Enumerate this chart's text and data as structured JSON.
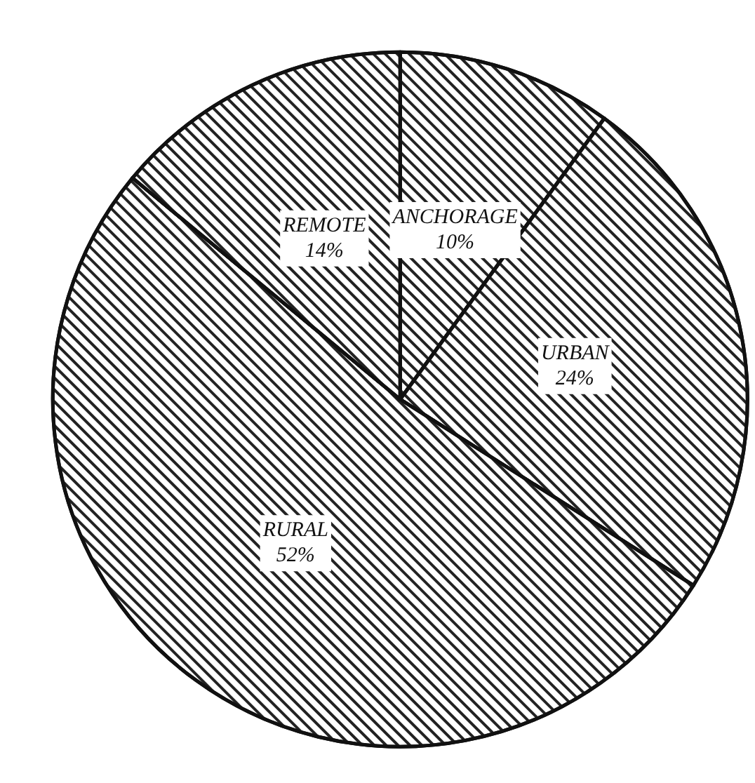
{
  "chart_data": {
    "type": "pie",
    "categories": [
      "ANCHORAGE",
      "URBAN",
      "RURAL",
      "REMOTE"
    ],
    "values": [
      10,
      24,
      52,
      14
    ],
    "value_labels": [
      "10%",
      "24%",
      "52%",
      "14%"
    ],
    "colors": [
      "#ffffff",
      "#ffffff",
      "#ffffff",
      "#ffffff"
    ]
  }
}
